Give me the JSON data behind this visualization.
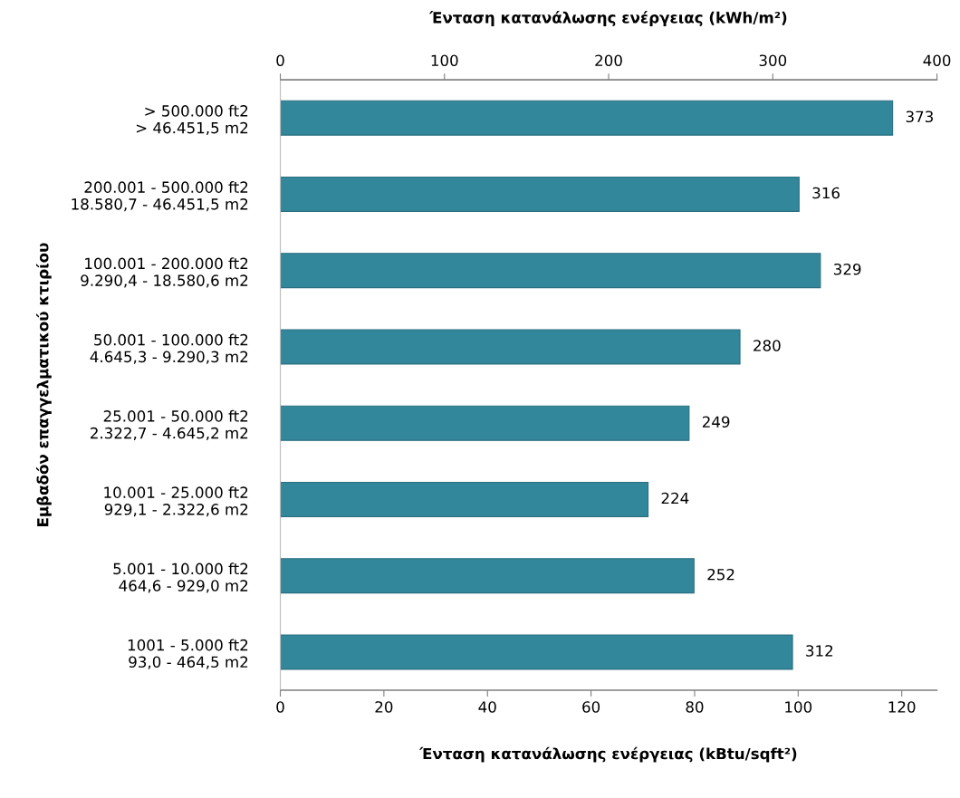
{
  "chart_data": {
    "type": "bar",
    "orientation": "horizontal",
    "categories": [
      "> 500.000 ft2\n> 46.451,5 m2",
      "200.001 - 500.000 ft2\n18.580,7 - 46.451,5 m2",
      "100.001 - 200.000 ft2\n9.290,4 - 18.580,6 m2",
      "50.001 - 100.000 ft2\n4.645,3 - 9.290,3 m2",
      "25.001 - 50.000 ft2\n2.322,7 - 4.645,2 m2",
      "10.001 - 25.000 ft2\n929,1 - 2.322,6 m2",
      "5.001 - 10.000 ft2\n464,6 - 929,0 m2",
      "1001 - 5.000 ft2\n93,0 - 464,5 m2"
    ],
    "series": [
      {
        "color": "#33879b",
        "axis": "x2",
        "values": [
          373,
          316,
          329,
          280,
          249,
          224,
          252,
          312
        ]
      }
    ],
    "data_labels": true,
    "x2label": "Ένταση κατανάλωσης ενέργειας (kWh/m²)",
    "x2lim": [
      0,
      400
    ],
    "x2ticks": [
      0,
      100,
      200,
      300,
      400
    ],
    "xlabel": "Ένταση κατανάλωσης ενέργειας (kBtu/sqft²)",
    "xlim": [
      0,
      126.8
    ],
    "xticks": [
      0,
      20,
      40,
      60,
      80,
      100,
      120
    ],
    "ylabel": "Εμβαδόν επαγγελματικού κτιρίου",
    "grid": false
  }
}
